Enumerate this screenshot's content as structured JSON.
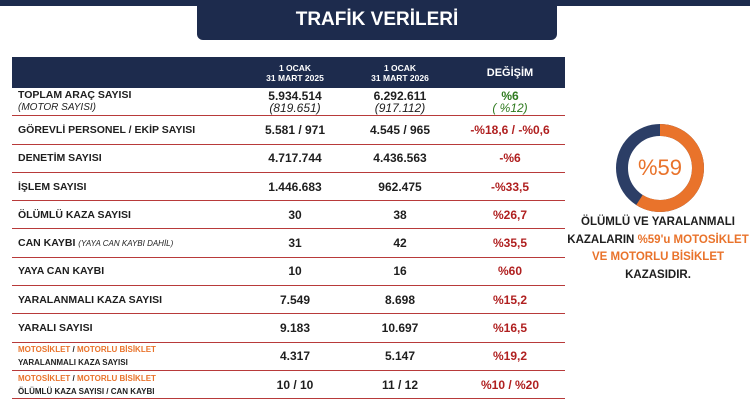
{
  "header": {
    "title": "TRAFİK VERİLERİ"
  },
  "table": {
    "columns": [
      [
        "1 OCAK",
        "31 MART 2025"
      ],
      [
        "1 OCAK",
        "31 MART 2026"
      ],
      [
        "DEĞİŞİM"
      ]
    ],
    "rows": [
      {
        "label": [
          "TOPLAM ARAÇ SAYISI"
        ],
        "sublabel": "(MOTOR SAYISI)",
        "cells": [
          [
            "5.934.514",
            "(819.651)"
          ],
          [
            "6.292.611",
            "(917.112)"
          ],
          [
            "%6",
            "( %12)"
          ]
        ],
        "positive": true
      },
      {
        "label": [
          "GÖREVLİ PERSONEL / EKİP SAYISI"
        ],
        "cells": [
          [
            "5.581 / 971"
          ],
          [
            "4.545 / 965"
          ],
          [
            "-%18,6 / -%0,6"
          ]
        ]
      },
      {
        "label": [
          "DENETİM SAYISI"
        ],
        "cells": [
          [
            "4.717.744"
          ],
          [
            "4.436.563"
          ],
          [
            "-%6"
          ]
        ]
      },
      {
        "label": [
          "İŞLEM SAYISI"
        ],
        "cells": [
          [
            "1.446.683"
          ],
          [
            "962.475"
          ],
          [
            "-%33,5"
          ]
        ]
      },
      {
        "label": [
          "ÖLÜMLÜ KAZA SAYISI"
        ],
        "cells": [
          [
            "30"
          ],
          [
            "38"
          ],
          [
            "%26,7"
          ]
        ]
      },
      {
        "label": [
          "CAN KAYBI"
        ],
        "note": "(YAYA CAN KAYBI DAHİL)",
        "cells": [
          [
            "31"
          ],
          [
            "42"
          ],
          [
            "%35,5"
          ]
        ]
      },
      {
        "label": [
          "YAYA CAN KAYBI"
        ],
        "cells": [
          [
            "10"
          ],
          [
            "16"
          ],
          [
            "%60"
          ]
        ]
      },
      {
        "label": [
          "YARALANMALI KAZA SAYISI"
        ],
        "cells": [
          [
            "7.549"
          ],
          [
            "8.698"
          ],
          [
            "%15,2"
          ]
        ]
      },
      {
        "label": [
          "YARALI SAYISI"
        ],
        "cells": [
          [
            "9.183"
          ],
          [
            "10.697"
          ],
          [
            "%16,5"
          ]
        ]
      },
      {
        "label": [
          "MOTOSİKLET",
          " / ",
          "MOTORLU BİSİKLET"
        ],
        "sublabel2": "YARALANMALI KAZA SAYISI",
        "cells": [
          [
            "4.317"
          ],
          [
            "5.147"
          ],
          [
            "%19,2"
          ]
        ]
      },
      {
        "label": [
          "MOTOSİKLET",
          " / ",
          "MOTORLU BİSİKLET"
        ],
        "sublabel2": "ÖLÜMLÜ KAZA SAYISI / CAN KAYBI",
        "cells": [
          [
            "10 / 10"
          ],
          [
            "11 / 12"
          ],
          [
            "%10 / %20"
          ]
        ]
      }
    ]
  },
  "donut": {
    "value": 59,
    "label": "%59",
    "color": "#e9732b",
    "rest_color": "#2c3e66"
  },
  "caption": [
    "ÖLÜMLÜ VE YARALANMALI KAZALARIN ",
    "%59'u",
    " MOTOSİKLET VE MOTORLU BİSİKLET",
    " KAZASIDIR."
  ]
}
